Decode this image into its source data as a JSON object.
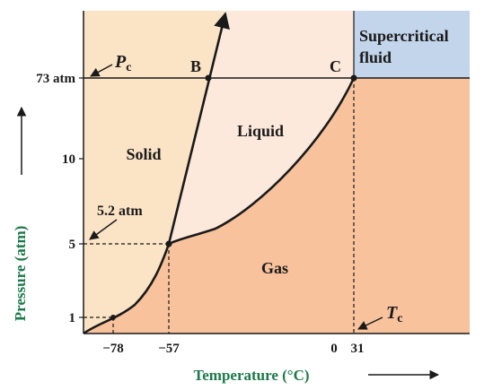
{
  "colors": {
    "solid_region": "#fbe3c5",
    "liquid_region": "#fde9dc",
    "gas_region": "#f7c29c",
    "supercritical_region": "#c2d5ea",
    "curve": "#1a1a1a",
    "axis_title": "#1b7a4a"
  },
  "regions": {
    "solid": "Solid",
    "liquid": "Liquid",
    "gas": "Gas",
    "supercritical_line1": "Supercritical",
    "supercritical_line2": "fluid"
  },
  "points": {
    "b": "B",
    "c": "C"
  },
  "annotations": {
    "pc_letter": "P",
    "pc_subscript": "c",
    "tc_letter": "T",
    "tc_subscript": "c",
    "triple_pressure": "5.2 atm"
  },
  "y_ticks": [
    "73 atm",
    "10",
    "5",
    "1"
  ],
  "x_ticks": [
    "−78",
    "−57",
    "0",
    "31"
  ],
  "axes": {
    "y_title": "Pressure (atm)",
    "x_title": "Temperature (°C)"
  }
}
